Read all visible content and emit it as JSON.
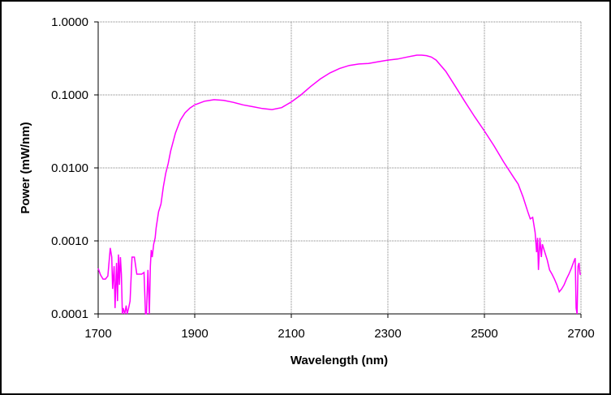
{
  "chart_data": {
    "type": "line",
    "title": "",
    "xlabel": "Wavelength (nm)",
    "ylabel": "Power (mW/nm)",
    "xlim": [
      1700,
      2700
    ],
    "ylim": [
      0.0001,
      1.0
    ],
    "y_scale": "log",
    "grid": true,
    "legend": "none",
    "x_ticks": [
      "1700",
      "1900",
      "2100",
      "2300",
      "2500",
      "2700"
    ],
    "y_ticks": [
      "1.0000",
      "0.1000",
      "0.0100",
      "0.0010",
      "0.0001"
    ],
    "series": [
      {
        "color": "#ff00ff",
        "x": [
          1700,
          1705,
          1710,
          1715,
          1720,
          1725,
          1728,
          1730,
          1733,
          1735,
          1738,
          1740,
          1742,
          1744,
          1746,
          1748,
          1750,
          1752,
          1755,
          1758,
          1760,
          1763,
          1766,
          1770,
          1775,
          1780,
          1785,
          1790,
          1795,
          1798,
          1800,
          1803,
          1806,
          1808,
          1810,
          1812,
          1815,
          1818,
          1820,
          1825,
          1830,
          1835,
          1840,
          1845,
          1850,
          1860,
          1870,
          1880,
          1890,
          1900,
          1920,
          1940,
          1960,
          1980,
          2000,
          2020,
          2040,
          2060,
          2080,
          2100,
          2120,
          2140,
          2160,
          2180,
          2200,
          2220,
          2240,
          2260,
          2280,
          2300,
          2320,
          2340,
          2360,
          2370,
          2380,
          2390,
          2400,
          2420,
          2440,
          2460,
          2480,
          2500,
          2520,
          2540,
          2560,
          2570,
          2580,
          2590,
          2595,
          2600,
          2605,
          2608,
          2610,
          2612,
          2615,
          2618,
          2620,
          2625,
          2630,
          2635,
          2640,
          2645,
          2650,
          2655,
          2660,
          2665,
          2670,
          2675,
          2680,
          2685,
          2688,
          2690,
          2692,
          2694,
          2696,
          2698,
          2700
        ],
        "y": [
          0.00042,
          0.00034,
          0.0003,
          0.0003,
          0.00033,
          0.0008,
          0.0006,
          0.00022,
          0.00045,
          0.00012,
          0.0005,
          0.00015,
          0.00065,
          0.00025,
          0.0006,
          0.00035,
          0.0001,
          0.00012,
          0.0001,
          0.00013,
          0.0001,
          0.00012,
          0.00015,
          0.0006,
          0.0006,
          0.00035,
          0.00035,
          0.00035,
          0.00037,
          0.0001,
          0.0001,
          0.0004,
          0.0001,
          0.00045,
          0.00075,
          0.0006,
          0.0009,
          0.0011,
          0.0015,
          0.0025,
          0.0032,
          0.0055,
          0.0085,
          0.0115,
          0.017,
          0.03,
          0.045,
          0.057,
          0.066,
          0.073,
          0.082,
          0.086,
          0.084,
          0.079,
          0.073,
          0.069,
          0.065,
          0.063,
          0.067,
          0.08,
          0.1,
          0.13,
          0.165,
          0.2,
          0.23,
          0.253,
          0.265,
          0.27,
          0.285,
          0.3,
          0.31,
          0.33,
          0.35,
          0.35,
          0.345,
          0.33,
          0.3,
          0.21,
          0.13,
          0.08,
          0.05,
          0.032,
          0.02,
          0.012,
          0.0075,
          0.006,
          0.004,
          0.0025,
          0.002,
          0.0021,
          0.0013,
          0.0007,
          0.0011,
          0.0004,
          0.0011,
          0.0006,
          0.0009,
          0.0007,
          0.00055,
          0.0004,
          0.00035,
          0.0003,
          0.00025,
          0.0002,
          0.00022,
          0.00025,
          0.0003,
          0.00035,
          0.00042,
          0.00052,
          0.00058,
          0.00012,
          0.0001,
          0.00045,
          0.0005,
          0.00035,
          0.00035
        ]
      }
    ]
  }
}
